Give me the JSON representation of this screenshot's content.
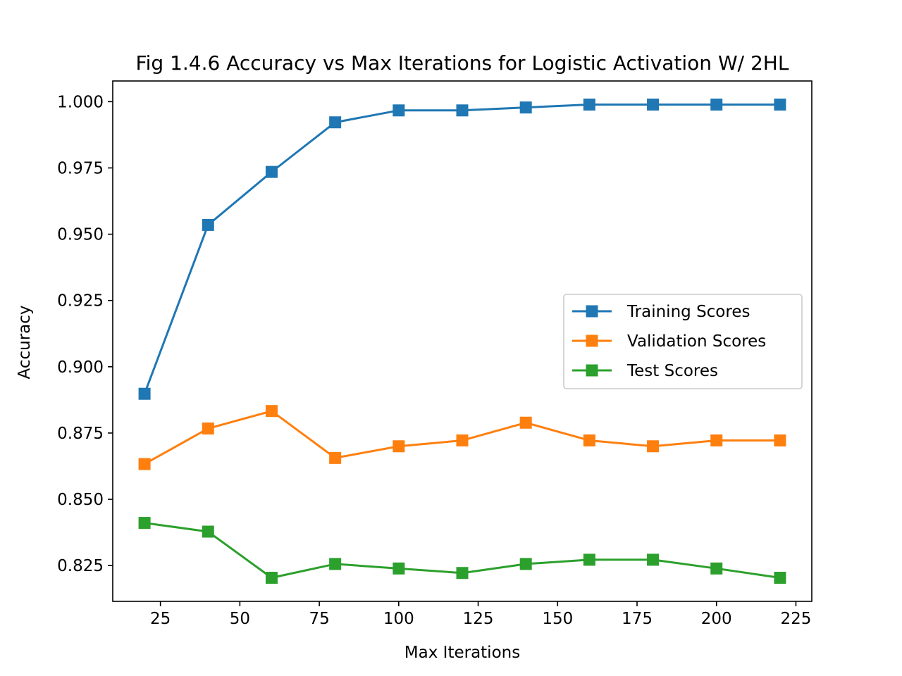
{
  "chart_data": {
    "type": "line",
    "title": "Fig 1.4.6 Accuracy vs Max Iterations for Logistic Activation W/ 2HL",
    "xlabel": "Max Iterations",
    "ylabel": "Accuracy",
    "xlim": [
      10,
      230
    ],
    "ylim": [
      0.8115,
      1.0078
    ],
    "xticks": [
      25,
      50,
      75,
      100,
      125,
      150,
      175,
      200,
      225
    ],
    "yticks": [
      0.825,
      0.85,
      0.875,
      0.9,
      0.925,
      0.95,
      0.975,
      1.0
    ],
    "ytick_labels": [
      "0.825",
      "0.850",
      "0.875",
      "0.900",
      "0.925",
      "0.950",
      "0.975",
      "1.000"
    ],
    "grid": false,
    "legend_position": "center-right",
    "x": [
      20,
      40,
      60,
      80,
      100,
      120,
      140,
      160,
      180,
      200,
      220
    ],
    "series": [
      {
        "name": "Training Scores",
        "color": "#1f77b4",
        "marker": "square",
        "values": [
          0.8898,
          0.9535,
          0.9735,
          0.9922,
          0.9967,
          0.9967,
          0.9978,
          0.9989,
          0.9989,
          0.9989,
          0.9989
        ]
      },
      {
        "name": "Validation Scores",
        "color": "#ff7f0e",
        "marker": "square",
        "values": [
          0.8633,
          0.8767,
          0.8833,
          0.8656,
          0.87,
          0.8722,
          0.8789,
          0.8722,
          0.87,
          0.8722,
          0.8722
        ]
      },
      {
        "name": "Test Scores",
        "color": "#2ca02c",
        "marker": "square",
        "values": [
          0.8411,
          0.8378,
          0.8204,
          0.8256,
          0.8239,
          0.8222,
          0.8256,
          0.8272,
          0.8272,
          0.8239,
          0.8204
        ]
      }
    ]
  }
}
